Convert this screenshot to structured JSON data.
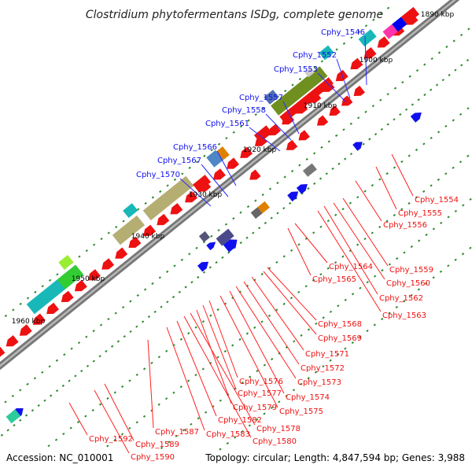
{
  "title": "Clostridium phytofermentans ISDg, complete genome",
  "footer": {
    "accession": "Accession: NC_010001",
    "summary": "Topology: circular; Length: 4,847,594 bp; Genes: 3,988"
  },
  "ticks": [
    "1890 kbp",
    "1900 kbp",
    "1910 kbp",
    "1920 kbp",
    "1930 kbp",
    "1940 kbp",
    "1950 kbp",
    "1960 kbp"
  ],
  "labels_forward": [
    "Cphy_1546",
    "Cphy_1552",
    "Cphy_1553",
    "Cphy_1557",
    "Cphy_1558",
    "Cphy_1561",
    "Cphy_1566",
    "Cphy_1567",
    "Cphy_1570"
  ],
  "labels_reverse": [
    "Cphy_1554",
    "Cphy_1555",
    "Cphy_1556",
    "Cphy_1559",
    "Cphy_1560",
    "Cphy_1562",
    "Cphy_1563",
    "Cphy_1564",
    "Cphy_1565",
    "Cphy_1568",
    "Cphy_1569",
    "Cphy_1571",
    "Cphy_1572",
    "Cphy_1573",
    "Cphy_1574",
    "Cphy_1575",
    "Cphy_1576",
    "Cphy_1577",
    "Cphy_1578",
    "Cphy_1579",
    "Cphy_1580",
    "Cphy_1582",
    "Cphy_1583",
    "Cphy_1587",
    "Cphy_1589",
    "Cphy_1590",
    "Cphy_1592"
  ],
  "colors": {
    "forward": "#1010ee",
    "reverse": "#ee1111",
    "forward_line": "#2a2aff",
    "reverse_line": "#ff2020",
    "backbone": "#777777",
    "tick": "#2a8a2a"
  }
}
